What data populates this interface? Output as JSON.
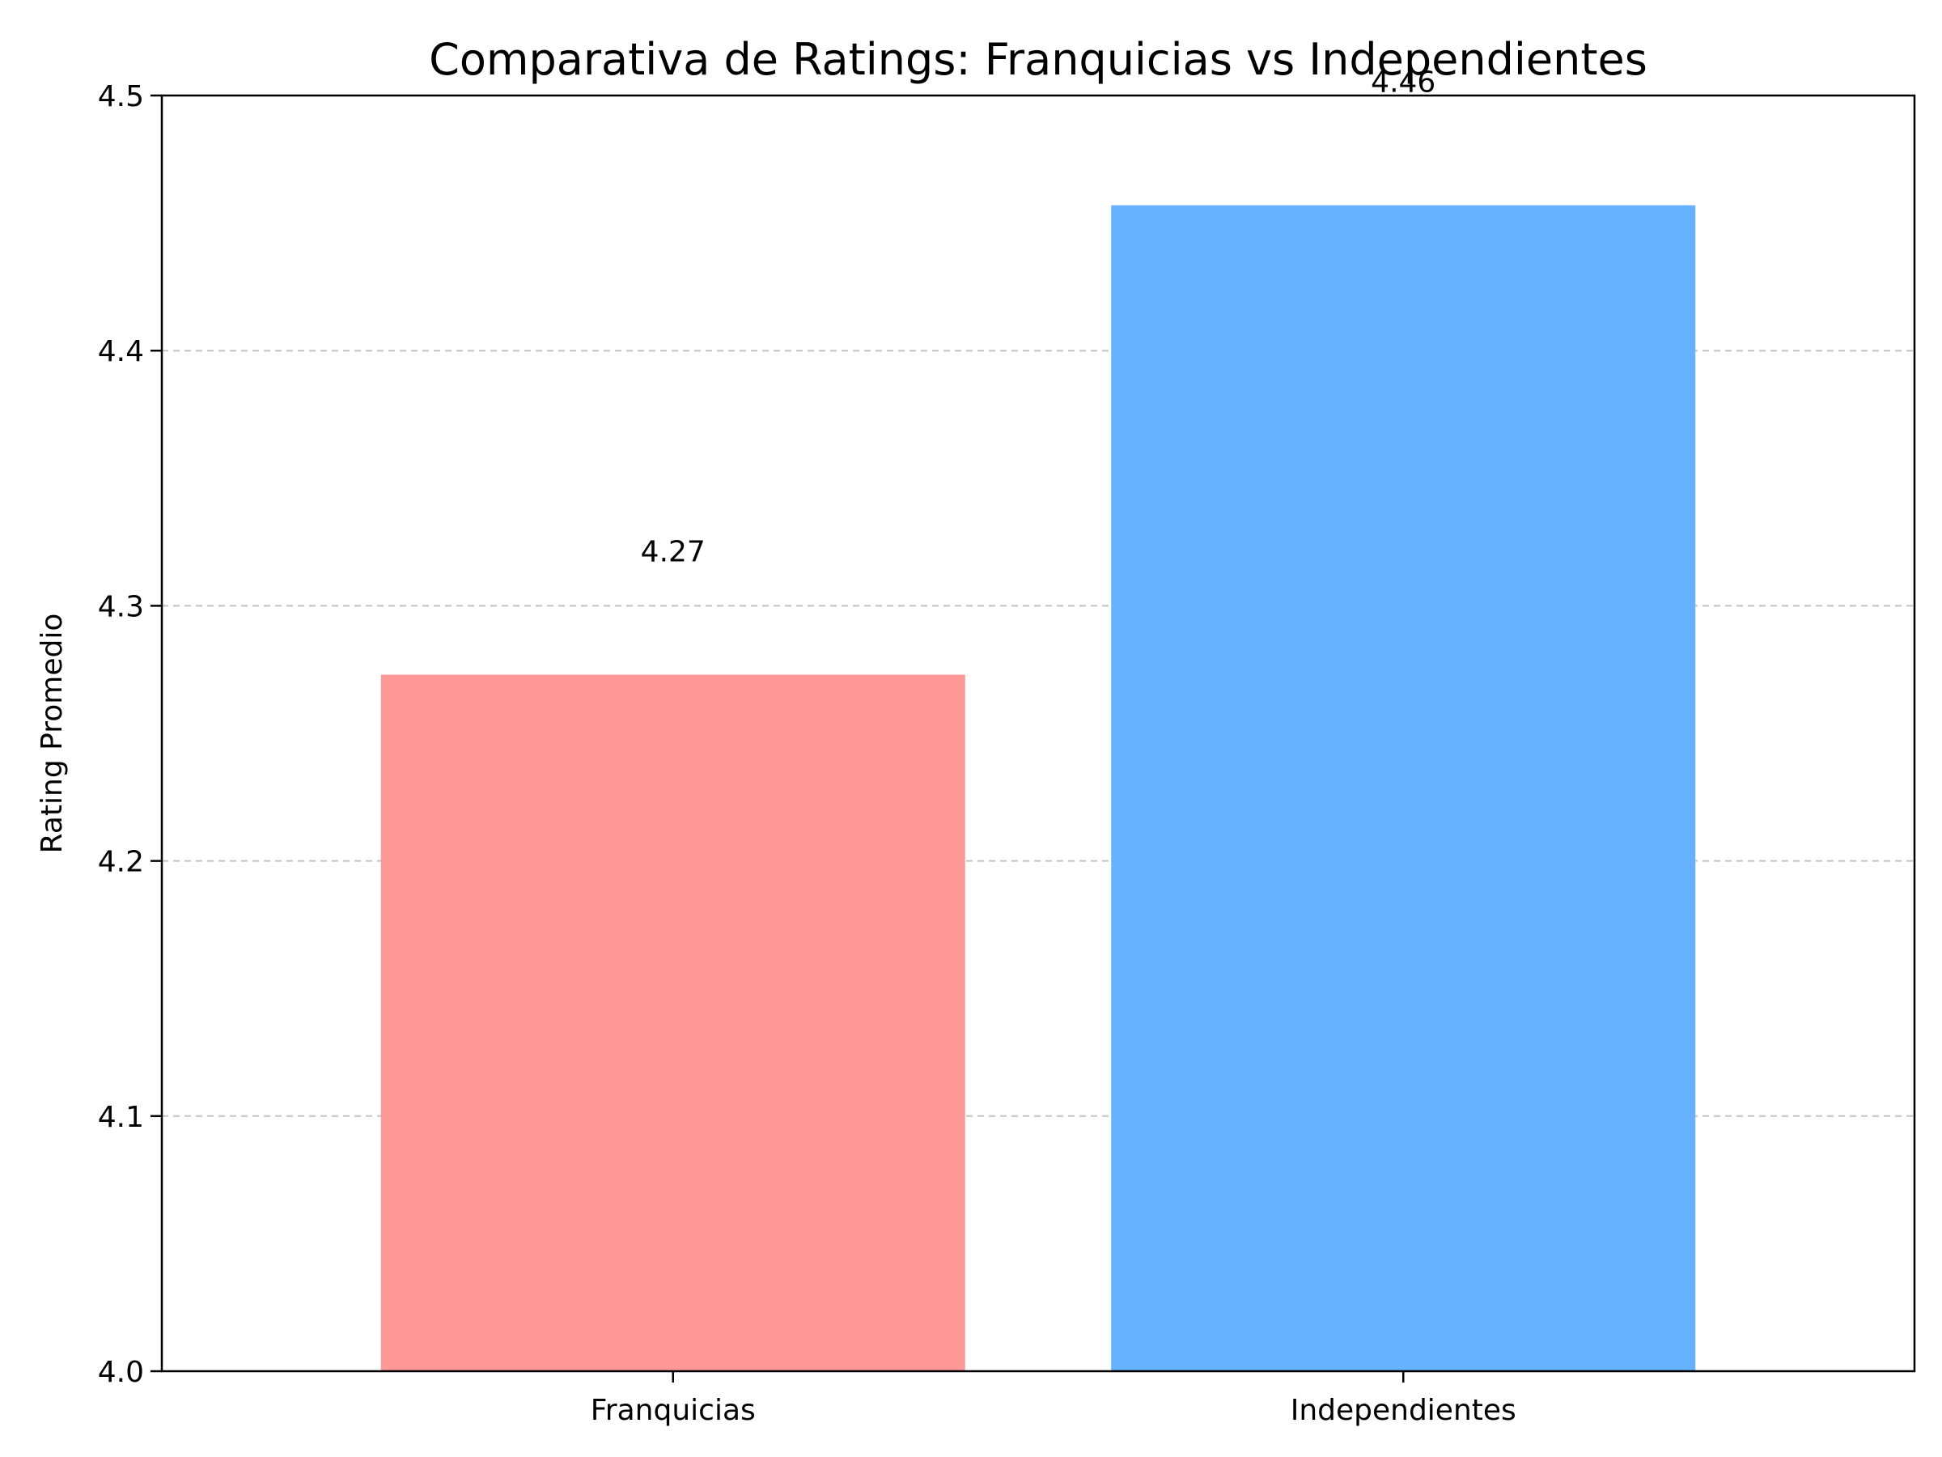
{
  "chart_data": {
    "type": "bar",
    "title": "Comparativa de Ratings: Franquicias vs Independientes",
    "xlabel": "",
    "ylabel": "Rating Promedio",
    "categories": [
      "Franquicias",
      "Independientes"
    ],
    "values": [
      4.273,
      4.457
    ],
    "data_labels": [
      "4.27",
      "4.46"
    ],
    "colors": [
      "#ff9999",
      "#66b2ff"
    ],
    "ylim": [
      4.0,
      4.5
    ],
    "yticks": [
      4.0,
      4.1,
      4.2,
      4.3,
      4.4,
      4.5
    ],
    "ytick_labels": [
      "4.0",
      "4.1",
      "4.2",
      "4.3",
      "4.4",
      "4.5"
    ],
    "grid": "y-dashed",
    "legend": "none"
  }
}
